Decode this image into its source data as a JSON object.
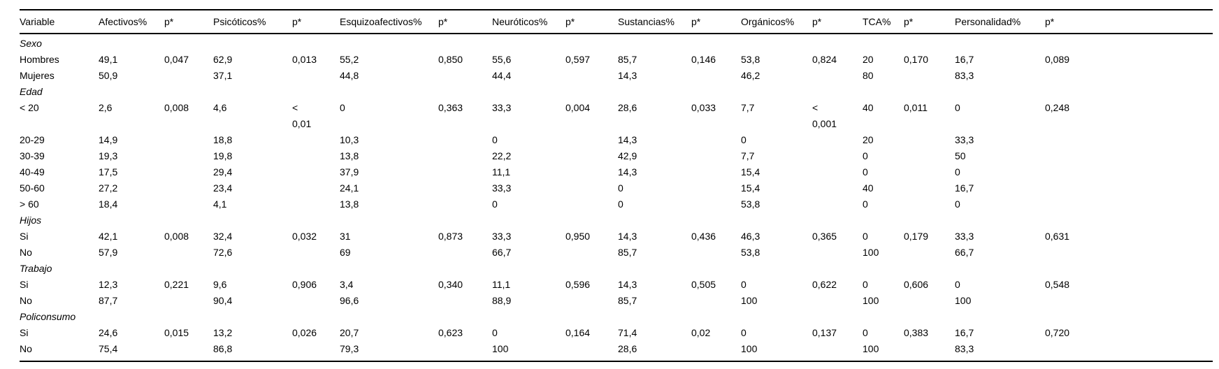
{
  "table": {
    "columns": [
      "Variable",
      "Afectivos%",
      "p*",
      "Psicóticos%",
      "p*",
      "Esquizoafectivos%",
      "p*",
      "Neuróticos%",
      "p*",
      "Sustancias%",
      "p*",
      "Orgánicos%",
      "p*",
      "TCA%",
      "p*",
      "Personalidad%",
      "p*"
    ],
    "rows": [
      {
        "type": "category",
        "label": "Sexo",
        "values": [
          "",
          "",
          "",
          "",
          "",
          "",
          "",
          "",
          "",
          "",
          "",
          "",
          "",
          "",
          "",
          ""
        ]
      },
      {
        "type": "data",
        "label": "Hombres",
        "values": [
          "49,1",
          "0,047",
          "62,9",
          "0,013",
          "55,2",
          "0,850",
          "55,6",
          "0,597",
          "85,7",
          "0,146",
          "53,8",
          "0,824",
          "20",
          "0,170",
          "16,7",
          "0,089"
        ]
      },
      {
        "type": "data",
        "label": "Mujeres",
        "values": [
          "50,9",
          "",
          "37,1",
          "",
          "44,8",
          "",
          "44,4",
          "",
          "14,3",
          "",
          "46,2",
          "",
          "80",
          "",
          "83,3",
          ""
        ]
      },
      {
        "type": "category",
        "label": "Edad",
        "values": [
          "",
          "",
          "",
          "",
          "",
          "",
          "",
          "",
          "",
          "",
          "",
          "",
          "",
          "",
          "",
          ""
        ]
      },
      {
        "type": "data",
        "label": "< 20",
        "values": [
          "2,6",
          "0,008",
          "4,6",
          "<\n0,01",
          "0",
          "0,363",
          "33,3",
          "0,004",
          "28,6",
          "0,033",
          "7,7",
          "<\n0,001",
          "40",
          "0,011",
          "0",
          "0,248"
        ]
      },
      {
        "type": "data",
        "label": "20-29",
        "values": [
          "14,9",
          "",
          "18,8",
          "",
          "10,3",
          "",
          "0",
          "",
          "14,3",
          "",
          "0",
          "",
          "20",
          "",
          "33,3",
          ""
        ]
      },
      {
        "type": "data",
        "label": "30-39",
        "values": [
          "19,3",
          "",
          "19,8",
          "",
          "13,8",
          "",
          "22,2",
          "",
          "42,9",
          "",
          "7,7",
          "",
          "0",
          "",
          "50",
          ""
        ]
      },
      {
        "type": "data",
        "label": "40-49",
        "values": [
          "17,5",
          "",
          "29,4",
          "",
          "37,9",
          "",
          "11,1",
          "",
          "14,3",
          "",
          "15,4",
          "",
          "0",
          "",
          "0",
          ""
        ]
      },
      {
        "type": "data",
        "label": "50-60",
        "values": [
          "27,2",
          "",
          "23,4",
          "",
          "24,1",
          "",
          "33,3",
          "",
          "0",
          "",
          "15,4",
          "",
          "40",
          "",
          "16,7",
          ""
        ]
      },
      {
        "type": "data",
        "label": "> 60",
        "values": [
          "18,4",
          "",
          "4,1",
          "",
          "13,8",
          "",
          "0",
          "",
          "0",
          "",
          "53,8",
          "",
          "0",
          "",
          "0",
          ""
        ]
      },
      {
        "type": "category",
        "label": "Hijos",
        "values": [
          "",
          "",
          "",
          "",
          "",
          "",
          "",
          "",
          "",
          "",
          "",
          "",
          "",
          "",
          "",
          ""
        ]
      },
      {
        "type": "data",
        "label": "Si",
        "values": [
          "42,1",
          "0,008",
          "32,4",
          "0,032",
          "31",
          "0,873",
          "33,3",
          "0,950",
          "14,3",
          "0,436",
          "46,3",
          "0,365",
          "0",
          "0,179",
          "33,3",
          "0,631"
        ]
      },
      {
        "type": "data",
        "label": "No",
        "values": [
          "57,9",
          "",
          "72,6",
          "",
          "69",
          "",
          "66,7",
          "",
          "85,7",
          "",
          "53,8",
          "",
          "100",
          "",
          "66,7",
          ""
        ]
      },
      {
        "type": "category",
        "label": "Trabajo",
        "values": [
          "",
          "",
          "",
          "",
          "",
          "",
          "",
          "",
          "",
          "",
          "",
          "",
          "",
          "",
          "",
          ""
        ]
      },
      {
        "type": "data",
        "label": "Si",
        "values": [
          "12,3",
          "0,221",
          "9,6",
          "0,906",
          "3,4",
          "0,340",
          "11,1",
          "0,596",
          "14,3",
          "0,505",
          "0",
          "0,622",
          "0",
          "0,606",
          "0",
          "0,548"
        ]
      },
      {
        "type": "data",
        "label": "No",
        "values": [
          "87,7",
          "",
          "90,4",
          "",
          "96,6",
          "",
          "88,9",
          "",
          "85,7",
          "",
          "100",
          "",
          "100",
          "",
          "100",
          ""
        ]
      },
      {
        "type": "category",
        "label": "Policonsumo",
        "values": [
          "",
          "",
          "",
          "",
          "",
          "",
          "",
          "",
          "",
          "",
          "",
          "",
          "",
          "",
          "",
          ""
        ]
      },
      {
        "type": "data",
        "label": "Si",
        "values": [
          "24,6",
          "0,015",
          "13,2",
          "0,026",
          "20,7",
          "0,623",
          "0",
          "0,164",
          "71,4",
          "0,02",
          "0",
          "0,137",
          "0",
          "0,383",
          "16,7",
          "0,720"
        ]
      },
      {
        "type": "data",
        "label": "No",
        "values": [
          "75,4",
          "",
          "86,8",
          "",
          "79,3",
          "",
          "100",
          "",
          "28,6",
          "",
          "100",
          "",
          "100",
          "",
          "83,3",
          ""
        ]
      }
    ],
    "colors": {
      "rule": "#000000",
      "text": "#000000",
      "background": "#ffffff"
    }
  }
}
